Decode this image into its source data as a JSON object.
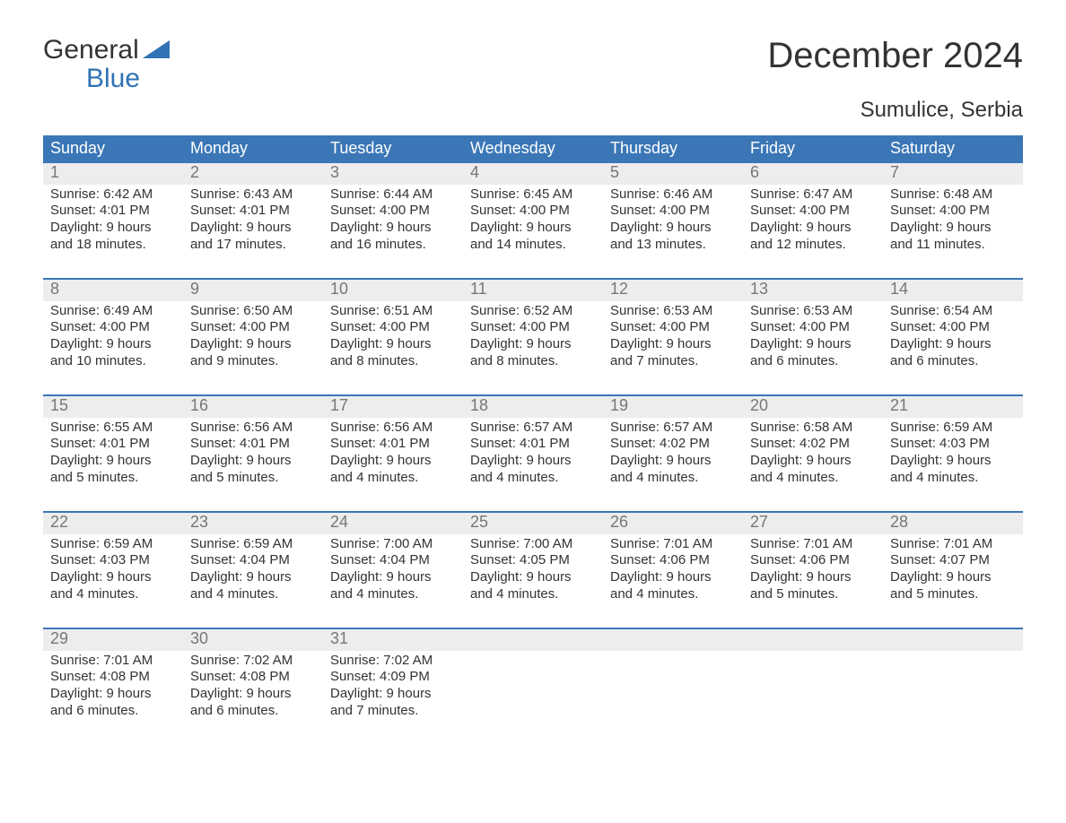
{
  "logo": {
    "word1": "General",
    "word2": "Blue",
    "tri_color": "#2f72b5"
  },
  "title": "December 2024",
  "location": "Sumulice, Serbia",
  "colors": {
    "header_bg": "#3b77b7",
    "header_text": "#ffffff",
    "daynum_bg": "#ededed",
    "daynum_text": "#777777",
    "body_text": "#333333",
    "rule": "#3b77b7"
  },
  "daynames": [
    "Sunday",
    "Monday",
    "Tuesday",
    "Wednesday",
    "Thursday",
    "Friday",
    "Saturday"
  ],
  "weeks": [
    [
      {
        "n": "1",
        "sunrise": "6:42 AM",
        "sunset": "4:01 PM",
        "dl1": "Daylight: 9 hours",
        "dl2": "and 18 minutes."
      },
      {
        "n": "2",
        "sunrise": "6:43 AM",
        "sunset": "4:01 PM",
        "dl1": "Daylight: 9 hours",
        "dl2": "and 17 minutes."
      },
      {
        "n": "3",
        "sunrise": "6:44 AM",
        "sunset": "4:00 PM",
        "dl1": "Daylight: 9 hours",
        "dl2": "and 16 minutes."
      },
      {
        "n": "4",
        "sunrise": "6:45 AM",
        "sunset": "4:00 PM",
        "dl1": "Daylight: 9 hours",
        "dl2": "and 14 minutes."
      },
      {
        "n": "5",
        "sunrise": "6:46 AM",
        "sunset": "4:00 PM",
        "dl1": "Daylight: 9 hours",
        "dl2": "and 13 minutes."
      },
      {
        "n": "6",
        "sunrise": "6:47 AM",
        "sunset": "4:00 PM",
        "dl1": "Daylight: 9 hours",
        "dl2": "and 12 minutes."
      },
      {
        "n": "7",
        "sunrise": "6:48 AM",
        "sunset": "4:00 PM",
        "dl1": "Daylight: 9 hours",
        "dl2": "and 11 minutes."
      }
    ],
    [
      {
        "n": "8",
        "sunrise": "6:49 AM",
        "sunset": "4:00 PM",
        "dl1": "Daylight: 9 hours",
        "dl2": "and 10 minutes."
      },
      {
        "n": "9",
        "sunrise": "6:50 AM",
        "sunset": "4:00 PM",
        "dl1": "Daylight: 9 hours",
        "dl2": "and 9 minutes."
      },
      {
        "n": "10",
        "sunrise": "6:51 AM",
        "sunset": "4:00 PM",
        "dl1": "Daylight: 9 hours",
        "dl2": "and 8 minutes."
      },
      {
        "n": "11",
        "sunrise": "6:52 AM",
        "sunset": "4:00 PM",
        "dl1": "Daylight: 9 hours",
        "dl2": "and 8 minutes."
      },
      {
        "n": "12",
        "sunrise": "6:53 AM",
        "sunset": "4:00 PM",
        "dl1": "Daylight: 9 hours",
        "dl2": "and 7 minutes."
      },
      {
        "n": "13",
        "sunrise": "6:53 AM",
        "sunset": "4:00 PM",
        "dl1": "Daylight: 9 hours",
        "dl2": "and 6 minutes."
      },
      {
        "n": "14",
        "sunrise": "6:54 AM",
        "sunset": "4:00 PM",
        "dl1": "Daylight: 9 hours",
        "dl2": "and 6 minutes."
      }
    ],
    [
      {
        "n": "15",
        "sunrise": "6:55 AM",
        "sunset": "4:01 PM",
        "dl1": "Daylight: 9 hours",
        "dl2": "and 5 minutes."
      },
      {
        "n": "16",
        "sunrise": "6:56 AM",
        "sunset": "4:01 PM",
        "dl1": "Daylight: 9 hours",
        "dl2": "and 5 minutes."
      },
      {
        "n": "17",
        "sunrise": "6:56 AM",
        "sunset": "4:01 PM",
        "dl1": "Daylight: 9 hours",
        "dl2": "and 4 minutes."
      },
      {
        "n": "18",
        "sunrise": "6:57 AM",
        "sunset": "4:01 PM",
        "dl1": "Daylight: 9 hours",
        "dl2": "and 4 minutes."
      },
      {
        "n": "19",
        "sunrise": "6:57 AM",
        "sunset": "4:02 PM",
        "dl1": "Daylight: 9 hours",
        "dl2": "and 4 minutes."
      },
      {
        "n": "20",
        "sunrise": "6:58 AM",
        "sunset": "4:02 PM",
        "dl1": "Daylight: 9 hours",
        "dl2": "and 4 minutes."
      },
      {
        "n": "21",
        "sunrise": "6:59 AM",
        "sunset": "4:03 PM",
        "dl1": "Daylight: 9 hours",
        "dl2": "and 4 minutes."
      }
    ],
    [
      {
        "n": "22",
        "sunrise": "6:59 AM",
        "sunset": "4:03 PM",
        "dl1": "Daylight: 9 hours",
        "dl2": "and 4 minutes."
      },
      {
        "n": "23",
        "sunrise": "6:59 AM",
        "sunset": "4:04 PM",
        "dl1": "Daylight: 9 hours",
        "dl2": "and 4 minutes."
      },
      {
        "n": "24",
        "sunrise": "7:00 AM",
        "sunset": "4:04 PM",
        "dl1": "Daylight: 9 hours",
        "dl2": "and 4 minutes."
      },
      {
        "n": "25",
        "sunrise": "7:00 AM",
        "sunset": "4:05 PM",
        "dl1": "Daylight: 9 hours",
        "dl2": "and 4 minutes."
      },
      {
        "n": "26",
        "sunrise": "7:01 AM",
        "sunset": "4:06 PM",
        "dl1": "Daylight: 9 hours",
        "dl2": "and 4 minutes."
      },
      {
        "n": "27",
        "sunrise": "7:01 AM",
        "sunset": "4:06 PM",
        "dl1": "Daylight: 9 hours",
        "dl2": "and 5 minutes."
      },
      {
        "n": "28",
        "sunrise": "7:01 AM",
        "sunset": "4:07 PM",
        "dl1": "Daylight: 9 hours",
        "dl2": "and 5 minutes."
      }
    ],
    [
      {
        "n": "29",
        "sunrise": "7:01 AM",
        "sunset": "4:08 PM",
        "dl1": "Daylight: 9 hours",
        "dl2": "and 6 minutes."
      },
      {
        "n": "30",
        "sunrise": "7:02 AM",
        "sunset": "4:08 PM",
        "dl1": "Daylight: 9 hours",
        "dl2": "and 6 minutes."
      },
      {
        "n": "31",
        "sunrise": "7:02 AM",
        "sunset": "4:09 PM",
        "dl1": "Daylight: 9 hours",
        "dl2": "and 7 minutes."
      },
      {
        "empty": true
      },
      {
        "empty": true
      },
      {
        "empty": true
      },
      {
        "empty": true
      }
    ]
  ],
  "labels": {
    "sunrise": "Sunrise: ",
    "sunset": "Sunset: "
  }
}
